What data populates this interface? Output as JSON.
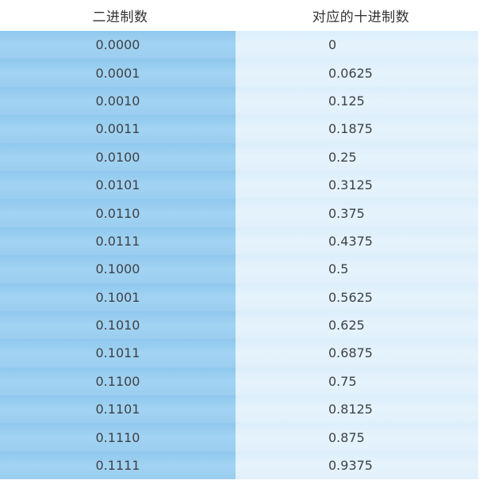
{
  "table": {
    "headers": [
      "二进制数",
      "对应的十进制数"
    ],
    "rows": [
      [
        "0.0000",
        "0"
      ],
      [
        "0.0001",
        "0.0625"
      ],
      [
        "0.0010",
        "0.125"
      ],
      [
        "0.0011",
        "0.1875"
      ],
      [
        "0.0100",
        "0.25"
      ],
      [
        "0.0101",
        "0.3125"
      ],
      [
        "0.0110",
        "0.375"
      ],
      [
        "0.0111",
        "0.4375"
      ],
      [
        "0.1000",
        "0.5"
      ],
      [
        "0.1001",
        "0.5625"
      ],
      [
        "0.1010",
        "0.625"
      ],
      [
        "0.1011",
        "0.6875"
      ],
      [
        "0.1100",
        "0.75"
      ],
      [
        "0.1101",
        "0.8125"
      ],
      [
        "0.1110",
        "0.875"
      ],
      [
        "0.1111",
        "0.9375"
      ]
    ]
  },
  "colors": {
    "header_text": "#333333",
    "binary_column_bg": "#9acdf0",
    "decimal_column_bg": "#e0f0fb",
    "cell_text": "#3e4247"
  }
}
